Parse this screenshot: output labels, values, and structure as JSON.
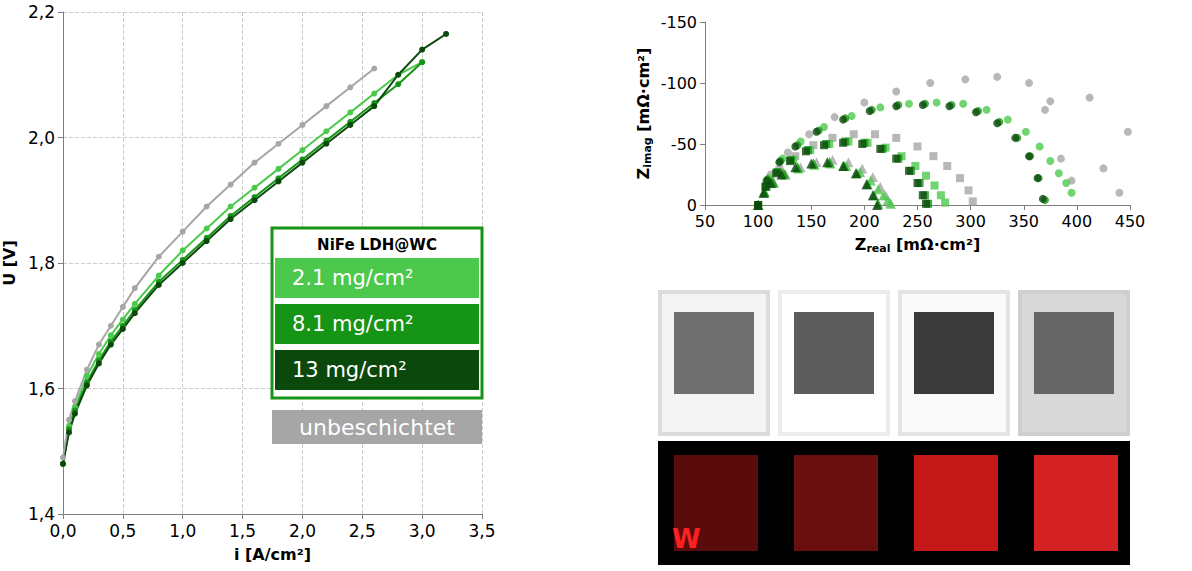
{
  "chart_data": [
    {
      "type": "line",
      "x_label": "i [A/cm²]",
      "y_label": "U [V]",
      "xlim": [
        0,
        3.5
      ],
      "xticks": [
        {
          "value": 0,
          "label": "0,0"
        },
        {
          "value": 0.5,
          "label": "0,5"
        },
        {
          "value": 1,
          "label": "1,0"
        },
        {
          "value": 1.5,
          "label": "1,5"
        },
        {
          "value": 2,
          "label": "2,0"
        },
        {
          "value": 2.5,
          "label": "2,5"
        },
        {
          "value": 3,
          "label": "3,0"
        },
        {
          "value": 3.5,
          "label": "3,5"
        }
      ],
      "ylim": [
        1.4,
        2.2
      ],
      "yticks": [
        {
          "value": 1.4,
          "label": "1,4"
        },
        {
          "value": 1.6,
          "label": "1,6"
        },
        {
          "value": 1.8,
          "label": "1,8"
        },
        {
          "value": 2,
          "label": "2,0"
        },
        {
          "value": 2.2,
          "label": "2,2"
        }
      ],
      "grid": true,
      "legend": "lower right",
      "series": [
        {
          "name": "2.1 mg/cm²",
          "group": "NiFe LDH@WC",
          "color": "#4cc94c",
          "marker": "circle",
          "line_style": "solid",
          "x": [
            0,
            0.05,
            0.1,
            0.2,
            0.3,
            0.4,
            0.5,
            0.6,
            0.8,
            1.0,
            1.2,
            1.4,
            1.6,
            1.8,
            2.0,
            2.2,
            2.4,
            2.6,
            2.8,
            3.0
          ],
          "values": [
            1.48,
            1.54,
            1.57,
            1.62,
            1.655,
            1.685,
            1.71,
            1.735,
            1.78,
            1.82,
            1.855,
            1.89,
            1.92,
            1.95,
            1.98,
            2.01,
            2.04,
            2.07,
            2.1,
            2.12
          ]
        },
        {
          "name": "8.1 mg/cm²",
          "group": "NiFe LDH@WC",
          "color": "#169416",
          "marker": "circle",
          "line_style": "solid",
          "x": [
            0,
            0.05,
            0.1,
            0.2,
            0.3,
            0.4,
            0.5,
            0.6,
            0.8,
            1.0,
            1.2,
            1.4,
            1.6,
            1.8,
            2.0,
            2.2,
            2.4,
            2.6,
            2.8,
            3.0
          ],
          "values": [
            1.48,
            1.535,
            1.565,
            1.61,
            1.645,
            1.675,
            1.7,
            1.725,
            1.77,
            1.805,
            1.84,
            1.875,
            1.905,
            1.935,
            1.965,
            1.995,
            2.025,
            2.055,
            2.085,
            2.12
          ]
        },
        {
          "name": "13 mg/cm²",
          "group": "NiFe LDH@WC",
          "color": "#0b480b",
          "marker": "circle",
          "line_style": "solid",
          "x": [
            0,
            0.05,
            0.1,
            0.2,
            0.3,
            0.4,
            0.5,
            0.6,
            0.8,
            1.0,
            1.2,
            1.4,
            1.6,
            1.8,
            2.0,
            2.2,
            2.4,
            2.6,
            2.8,
            3.0,
            3.2
          ],
          "values": [
            1.48,
            1.53,
            1.56,
            1.605,
            1.64,
            1.67,
            1.695,
            1.72,
            1.765,
            1.8,
            1.835,
            1.87,
            1.9,
            1.93,
            1.96,
            1.99,
            2.02,
            2.05,
            2.1,
            2.14,
            2.165
          ]
        },
        {
          "name": "unbeschichtet",
          "color": "#a6a6a6",
          "marker": "circle",
          "line_style": "solid",
          "x": [
            0,
            0.05,
            0.1,
            0.2,
            0.3,
            0.4,
            0.5,
            0.6,
            0.8,
            1.0,
            1.2,
            1.4,
            1.6,
            1.8,
            2.0,
            2.2,
            2.4,
            2.6
          ],
          "values": [
            1.49,
            1.55,
            1.58,
            1.63,
            1.67,
            1.7,
            1.73,
            1.76,
            1.81,
            1.85,
            1.89,
            1.925,
            1.96,
            1.99,
            2.02,
            2.05,
            2.08,
            2.11
          ]
        }
      ]
    },
    {
      "type": "scatter",
      "x_label": "Zreal [mΩ·cm²]",
      "y_label": "Zimag [mΩ·cm²]",
      "xlim": [
        50,
        450
      ],
      "xticks": [
        50,
        100,
        150,
        200,
        250,
        300,
        350,
        400,
        450
      ],
      "ylim": [
        0,
        -150
      ],
      "yticks": [
        -150,
        -100,
        -50,
        0
      ],
      "grid": false,
      "series": [
        {
          "color": "#a6a6a6",
          "marker": "circle",
          "x": [
            100,
            112,
            128,
            148,
            172,
            200,
            230,
            262,
            295,
            325,
            355,
            370,
            375,
            385,
            395,
            412,
            425,
            440,
            448
          ],
          "values": [
            0,
            -25,
            -43,
            -58,
            -72,
            -84,
            -93,
            -100,
            -103,
            -105,
            -100,
            -78,
            -85,
            -38,
            -20,
            -88,
            -30,
            -10,
            -60
          ]
        },
        {
          "color": "#a6a6a6",
          "marker": "square",
          "x": [
            100,
            108,
            120,
            135,
            152,
            170,
            190,
            210,
            230,
            250,
            265,
            278,
            290,
            298,
            302
          ],
          "values": [
            0,
            -16,
            -29,
            -40,
            -49,
            -55,
            -58,
            -58,
            -55,
            -48,
            -40,
            -32,
            -22,
            -12,
            -3
          ]
        },
        {
          "color": "#a6a6a6",
          "marker": "triangle",
          "x": [
            100,
            106,
            115,
            126,
            140,
            155,
            170,
            185,
            198,
            208,
            215,
            220,
            224
          ],
          "values": [
            0,
            -10,
            -18,
            -25,
            -31,
            -35,
            -37,
            -35,
            -30,
            -23,
            -15,
            -8,
            -2
          ]
        },
        {
          "color": "#4cc94c",
          "marker": "circle",
          "x": [
            100,
            110,
            123,
            140,
            162,
            188,
            215,
            242,
            268,
            293,
            315,
            335,
            352,
            365,
            375,
            383,
            390,
            395
          ],
          "values": [
            0,
            -22,
            -38,
            -52,
            -64,
            -73,
            -80,
            -83,
            -84,
            -83,
            -78,
            -70,
            -60,
            -48,
            -36,
            -26,
            -18,
            -10
          ]
        },
        {
          "color": "#4cc94c",
          "marker": "square",
          "x": [
            100,
            108,
            119,
            133,
            149,
            167,
            185,
            203,
            220,
            235,
            248,
            258,
            266,
            272,
            276
          ],
          "values": [
            0,
            -15,
            -27,
            -37,
            -45,
            -50,
            -52,
            -51,
            -47,
            -40,
            -32,
            -24,
            -16,
            -8,
            -2
          ]
        },
        {
          "color": "#4cc94c",
          "marker": "triangle",
          "x": [
            100,
            106,
            114,
            125,
            138,
            153,
            168,
            183,
            196,
            206,
            213,
            218,
            222,
            225
          ],
          "values": [
            0,
            -10,
            -18,
            -25,
            -30,
            -33,
            -34,
            -32,
            -27,
            -20,
            -13,
            -8,
            -4,
            -1
          ]
        },
        {
          "color": "#169416",
          "marker": "circle",
          "x": [
            100,
            109,
            121,
            137,
            157,
            182,
            207,
            232,
            257,
            282,
            307,
            327,
            344,
            356,
            364,
            370
          ],
          "values": [
            0,
            -21,
            -36,
            -49,
            -61,
            -71,
            -78,
            -82,
            -83,
            -82,
            -77,
            -68,
            -55,
            -40,
            -22,
            -4
          ]
        },
        {
          "color": "#169416",
          "marker": "square",
          "x": [
            100,
            107,
            118,
            131,
            147,
            164,
            182,
            200,
            217,
            232,
            244,
            252,
            257,
            260
          ],
          "values": [
            0,
            -15,
            -27,
            -37,
            -45,
            -50,
            -52,
            -51,
            -46,
            -38,
            -28,
            -18,
            -8,
            -1
          ]
        },
        {
          "color": "#169416",
          "marker": "triangle",
          "x": [
            100,
            106,
            114,
            124,
            137,
            152,
            167,
            181,
            193,
            203,
            209,
            213
          ],
          "values": [
            0,
            -11,
            -19,
            -26,
            -31,
            -34,
            -35,
            -32,
            -26,
            -17,
            -8,
            -1
          ]
        },
        {
          "color": "#0b480b",
          "marker": "circle",
          "x": [
            100,
            108,
            120,
            135,
            155,
            180,
            205,
            230,
            255,
            280,
            305,
            325,
            342,
            355,
            363,
            368
          ],
          "values": [
            0,
            -20,
            -35,
            -48,
            -60,
            -70,
            -77,
            -81,
            -82,
            -81,
            -76,
            -67,
            -55,
            -40,
            -22,
            -5
          ]
        },
        {
          "color": "#0b480b",
          "marker": "square",
          "x": [
            100,
            107,
            117,
            130,
            145,
            162,
            180,
            198,
            215,
            230,
            242,
            250,
            255,
            258
          ],
          "values": [
            0,
            -15,
            -26,
            -36,
            -44,
            -49,
            -51,
            -50,
            -46,
            -38,
            -28,
            -18,
            -8,
            -1
          ]
        },
        {
          "color": "#0b480b",
          "marker": "triangle",
          "x": [
            100,
            105,
            112,
            122,
            135,
            150,
            165,
            180,
            192,
            202,
            208,
            212
          ],
          "values": [
            0,
            -10,
            -18,
            -25,
            -31,
            -34,
            -35,
            -32,
            -26,
            -17,
            -8,
            0
          ]
        }
      ]
    }
  ],
  "photos": {
    "label": "W"
  }
}
